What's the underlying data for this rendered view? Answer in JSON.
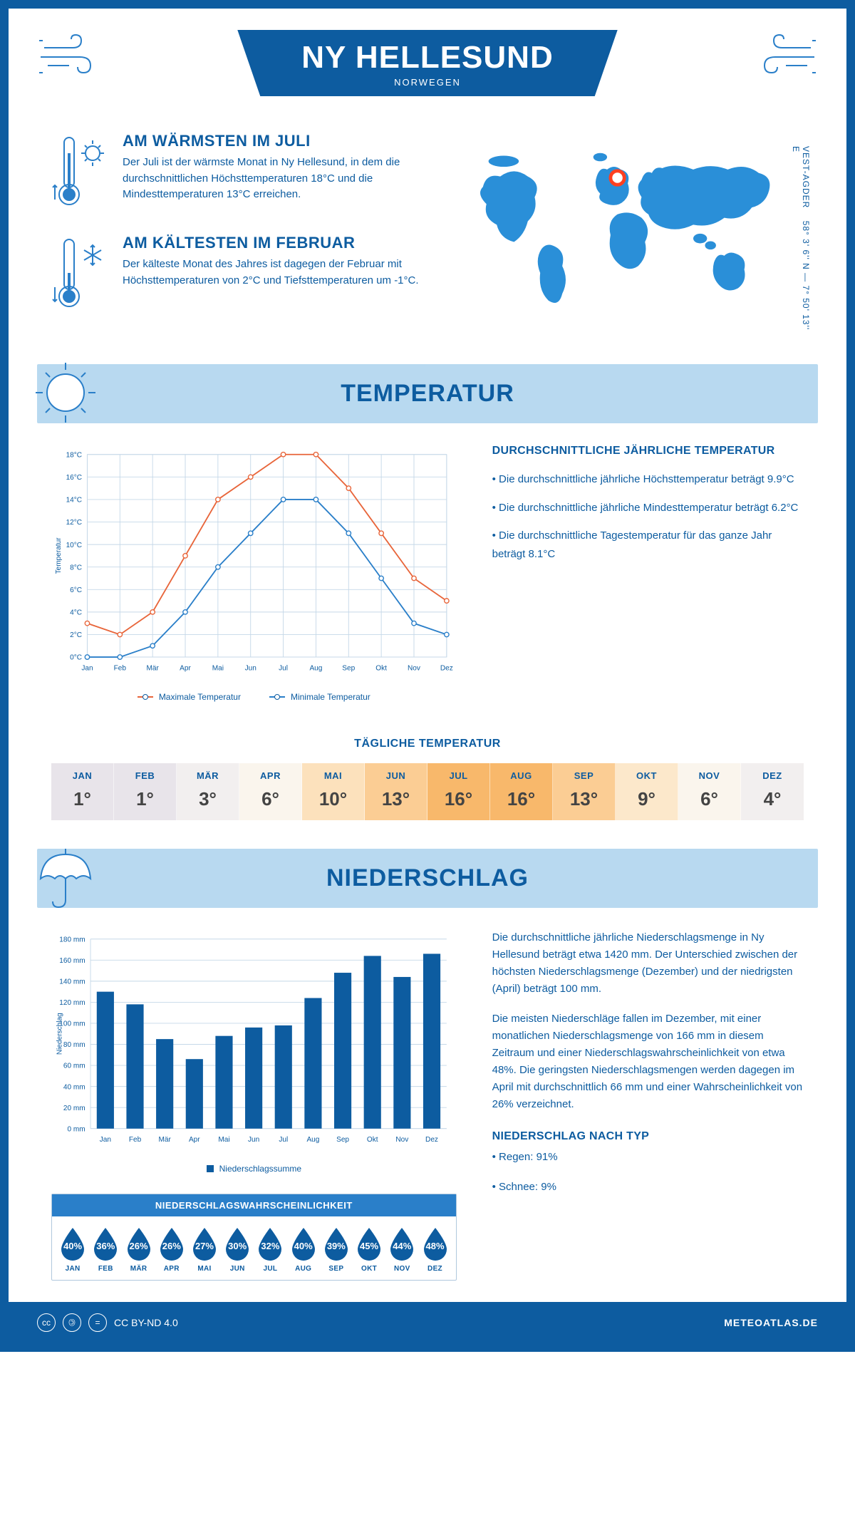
{
  "header": {
    "title": "NY HELLESUND",
    "subtitle": "NORWEGEN"
  },
  "coords": {
    "region": "VEST-AGDER",
    "lat": "58° 3' 6'' N",
    "lon": "7° 50' 13'' E"
  },
  "intro": {
    "warm": {
      "title": "AM WÄRMSTEN IM JULI",
      "text": "Der Juli ist der wärmste Monat in Ny Hellesund, in dem die durchschnittlichen Höchsttemperaturen 18°C und die Mindesttemperaturen 13°C erreichen."
    },
    "cold": {
      "title": "AM KÄLTESTEN IM FEBRUAR",
      "text": "Der kälteste Monat des Jahres ist dagegen der Februar mit Höchsttemperaturen von 2°C und Tiefsttemperaturen um -1°C."
    }
  },
  "sections": {
    "temperature": "TEMPERATUR",
    "precipitation": "NIEDERSCHLAG"
  },
  "temp_chart": {
    "type": "line",
    "months": [
      "Jan",
      "Feb",
      "Mär",
      "Apr",
      "Mai",
      "Jun",
      "Jul",
      "Aug",
      "Sep",
      "Okt",
      "Nov",
      "Dez"
    ],
    "max_values": [
      3,
      2,
      4,
      9,
      14,
      16,
      18,
      18,
      15,
      11,
      7,
      5
    ],
    "min_values": [
      0,
      -1,
      1,
      4,
      8,
      11,
      14,
      14,
      11,
      7,
      3,
      2
    ],
    "max_color": "#e8653a",
    "min_color": "#2a7fc9",
    "ylabel": "Temperatur",
    "ylim": [
      0,
      18
    ],
    "ytick_step": 2,
    "ytick_suffix": "°C",
    "grid_color": "#c5d8e8",
    "background": "#ffffff",
    "legend": {
      "max": "Maximale Temperatur",
      "min": "Minimale Temperatur"
    }
  },
  "temp_side": {
    "heading": "DURCHSCHNITTLICHE JÄHRLICHE TEMPERATUR",
    "line1": "• Die durchschnittliche jährliche Höchsttemperatur beträgt 9.9°C",
    "line2": "• Die durchschnittliche jährliche Mindesttemperatur beträgt 6.2°C",
    "line3": "• Die durchschnittliche Tagestemperatur für das ganze Jahr beträgt 8.1°C"
  },
  "daily": {
    "heading": "TÄGLICHE TEMPERATUR",
    "months": [
      "JAN",
      "FEB",
      "MÄR",
      "APR",
      "MAI",
      "JUN",
      "JUL",
      "AUG",
      "SEP",
      "OKT",
      "NOV",
      "DEZ"
    ],
    "values": [
      "1°",
      "1°",
      "3°",
      "6°",
      "10°",
      "13°",
      "16°",
      "16°",
      "13°",
      "9°",
      "6°",
      "4°"
    ],
    "colors": [
      "#e8e4ea",
      "#e8e4ea",
      "#f2efef",
      "#faf5ed",
      "#fce1bc",
      "#fbcd94",
      "#f8b86b",
      "#f8b86b",
      "#fbcd94",
      "#fce8cb",
      "#faf5ed",
      "#f2efef"
    ]
  },
  "precip_chart": {
    "type": "bar",
    "months": [
      "Jan",
      "Feb",
      "Mär",
      "Apr",
      "Mai",
      "Jun",
      "Jul",
      "Aug",
      "Sep",
      "Okt",
      "Nov",
      "Dez"
    ],
    "values": [
      130,
      118,
      85,
      66,
      88,
      96,
      98,
      124,
      148,
      164,
      144,
      166
    ],
    "bar_color": "#0d5ca0",
    "ylabel": "Niederschlag",
    "ylim": [
      0,
      180
    ],
    "ytick_step": 20,
    "ytick_suffix": " mm",
    "grid_color": "#c5d8e8",
    "legend": "Niederschlagssumme"
  },
  "precip_text": {
    "p1": "Die durchschnittliche jährliche Niederschlagsmenge in Ny Hellesund beträgt etwa 1420 mm. Der Unterschied zwischen der höchsten Niederschlagsmenge (Dezember) und der niedrigsten (April) beträgt 100 mm.",
    "p2": "Die meisten Niederschläge fallen im Dezember, mit einer monatlichen Niederschlagsmenge von 166 mm in diesem Zeitraum und einer Niederschlagswahrscheinlichkeit von etwa 48%. Die geringsten Niederschlagsmengen werden dagegen im April mit durchschnittlich 66 mm und einer Wahrscheinlichkeit von 26% verzeichnet.",
    "type_heading": "NIEDERSCHLAG NACH TYP",
    "type1": "• Regen: 91%",
    "type2": "• Schnee: 9%"
  },
  "prob": {
    "title": "NIEDERSCHLAGSWAHRSCHEINLICHKEIT",
    "months": [
      "JAN",
      "FEB",
      "MÄR",
      "APR",
      "MAI",
      "JUN",
      "JUL",
      "AUG",
      "SEP",
      "OKT",
      "NOV",
      "DEZ"
    ],
    "values": [
      "40%",
      "36%",
      "26%",
      "26%",
      "27%",
      "30%",
      "32%",
      "40%",
      "39%",
      "45%",
      "44%",
      "48%"
    ],
    "drop_color": "#0d5ca0"
  },
  "footer": {
    "license": "CC BY-ND 4.0",
    "site": "METEOATLAS.DE"
  }
}
